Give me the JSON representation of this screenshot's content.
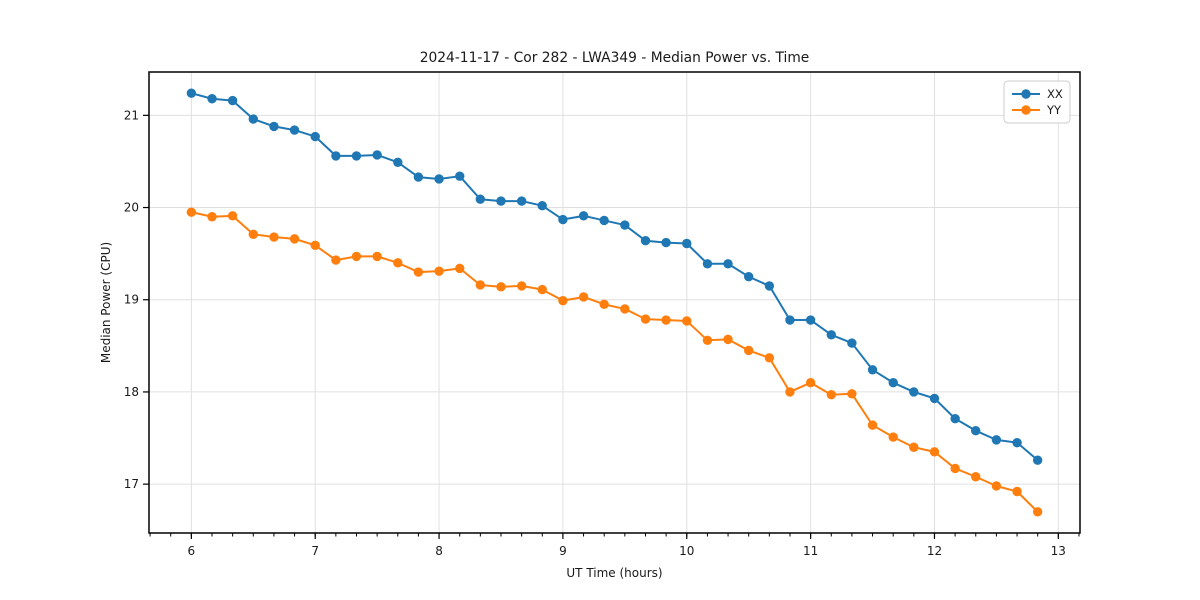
{
  "chart_data": {
    "type": "line",
    "title": "2024-11-17 - Cor 282 - LWA349 - Median Power vs. Time",
    "xlabel": "UT Time (hours)",
    "ylabel": "Median Power (CPU)",
    "xlim": [
      5.658,
      13.175
    ],
    "ylim": [
      16.47,
      21.47
    ],
    "x_ticks": [
      6,
      7,
      8,
      9,
      10,
      11,
      12,
      13
    ],
    "y_ticks": [
      17,
      18,
      19,
      20,
      21
    ],
    "x_minor_tick_step": 0.166667,
    "grid": true,
    "grid_color": "#e0e0e0",
    "background_color": "#ffffff",
    "legend": {
      "position": "upper right",
      "entries": [
        "XX",
        "YY"
      ]
    },
    "x": [
      6.0,
      6.167,
      6.333,
      6.5,
      6.667,
      6.833,
      7.0,
      7.167,
      7.333,
      7.5,
      7.667,
      7.833,
      8.0,
      8.167,
      8.333,
      8.5,
      8.667,
      8.833,
      9.0,
      9.167,
      9.333,
      9.5,
      9.667,
      9.833,
      10.0,
      10.167,
      10.333,
      10.5,
      10.667,
      10.833,
      11.0,
      11.167,
      11.333,
      11.5,
      11.667,
      11.833,
      12.0,
      12.167,
      12.333,
      12.5,
      12.667,
      12.833
    ],
    "series": [
      {
        "name": "XX",
        "color": "#1f77b4",
        "values": [
          21.24,
          21.18,
          21.16,
          20.96,
          20.88,
          20.84,
          20.77,
          20.56,
          20.56,
          20.57,
          20.49,
          20.33,
          20.31,
          20.34,
          20.09,
          20.07,
          20.07,
          20.02,
          19.87,
          19.91,
          19.86,
          19.81,
          19.64,
          19.62,
          19.61,
          19.39,
          19.39,
          19.25,
          19.15,
          18.78,
          18.78,
          18.62,
          18.53,
          18.24,
          18.1,
          18.0,
          17.93,
          17.71,
          17.58,
          17.48,
          17.45,
          17.26
        ]
      },
      {
        "name": "YY",
        "color": "#ff7f0e",
        "values": [
          19.95,
          19.9,
          19.91,
          19.71,
          19.68,
          19.66,
          19.59,
          19.43,
          19.47,
          19.47,
          19.4,
          19.3,
          19.31,
          19.34,
          19.16,
          19.14,
          19.15,
          19.11,
          18.99,
          19.03,
          18.95,
          18.9,
          18.79,
          18.78,
          18.77,
          18.56,
          18.57,
          18.45,
          18.37,
          18.0,
          18.1,
          17.97,
          17.98,
          17.64,
          17.51,
          17.4,
          17.35,
          17.17,
          17.08,
          16.98,
          16.92,
          16.7
        ]
      }
    ]
  }
}
